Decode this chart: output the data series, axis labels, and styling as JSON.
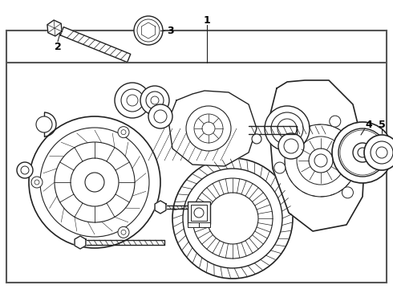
{
  "background_color": "#ffffff",
  "border_color": "#555555",
  "line_color": "#222222",
  "label_color": "#000000",
  "fig_width": 4.9,
  "fig_height": 3.6,
  "dpi": 100
}
